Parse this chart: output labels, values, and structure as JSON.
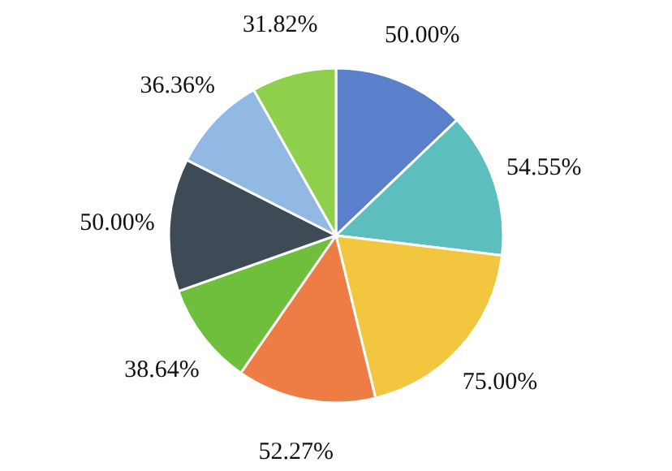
{
  "chart_data": {
    "type": "pie",
    "categories": [
      null,
      null,
      null,
      null,
      null,
      null,
      null,
      null
    ],
    "values": [
      50.0,
      54.55,
      75.0,
      52.27,
      38.64,
      50.0,
      36.36,
      31.82
    ],
    "value_labels": [
      "50.00%",
      "54.55%",
      "75.00%",
      "52.27%",
      "38.64%",
      "50.00%",
      "36.36%",
      "31.82%"
    ],
    "colors": [
      "#5b80cb",
      "#5cbfbd",
      "#f2c63f",
      "#ee7d45",
      "#6dbf3c",
      "#3e4a56",
      "#92b8e4",
      "#8ecf4c"
    ]
  }
}
